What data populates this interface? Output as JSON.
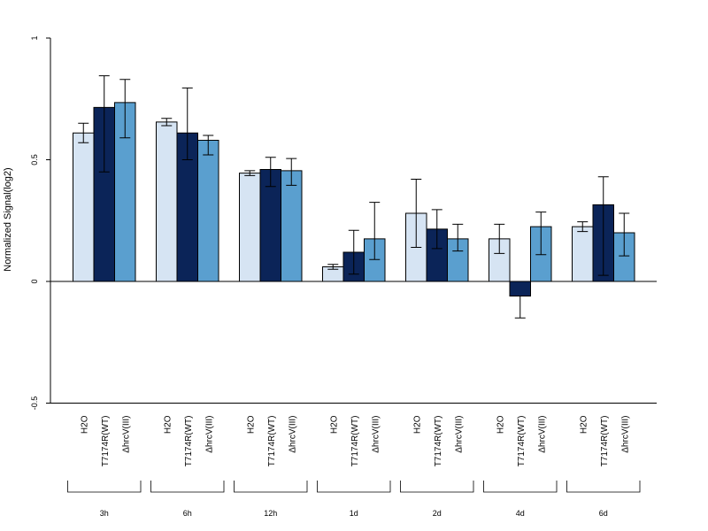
{
  "chart_data": {
    "type": "bar",
    "ylabel": "Normalized Signal(log2)",
    "ylim": [
      -0.5,
      1
    ],
    "yticks": [
      {
        "value": -0.5,
        "label": "-0.5"
      },
      {
        "value": 0,
        "label": "0"
      },
      {
        "value": 0.5,
        "label": "0.5"
      },
      {
        "value": 1,
        "label": "1"
      }
    ],
    "groups": [
      "3h",
      "6h",
      "12h",
      "1d",
      "2d",
      "4d",
      "6d"
    ],
    "series": [
      {
        "name": "H2O",
        "color": "#d6e4f3",
        "values": [
          0.61,
          0.655,
          0.445,
          0.06,
          0.28,
          0.175,
          0.225
        ],
        "err_low": [
          0.57,
          0.64,
          0.435,
          0.05,
          0.14,
          0.115,
          0.205
        ],
        "err_high": [
          0.65,
          0.67,
          0.455,
          0.07,
          0.42,
          0.235,
          0.245
        ]
      },
      {
        "name": "T7174R(WT)",
        "color": "#0b2458",
        "values": [
          0.715,
          0.61,
          0.46,
          0.12,
          0.215,
          -0.06,
          0.315
        ],
        "err_low": [
          0.45,
          0.5,
          0.39,
          0.03,
          0.135,
          -0.15,
          0.025
        ],
        "err_high": [
          0.845,
          0.795,
          0.51,
          0.21,
          0.295,
          -0.06,
          0.43
        ]
      },
      {
        "name": "ΔhrcV(III)",
        "color": "#5a9fcf",
        "values": [
          0.735,
          0.58,
          0.455,
          0.175,
          0.175,
          0.225,
          0.2
        ],
        "err_low": [
          0.59,
          0.52,
          0.395,
          0.09,
          0.125,
          0.11,
          0.105
        ],
        "err_high": [
          0.83,
          0.6,
          0.505,
          0.325,
          0.235,
          0.285,
          0.28
        ]
      }
    ]
  }
}
